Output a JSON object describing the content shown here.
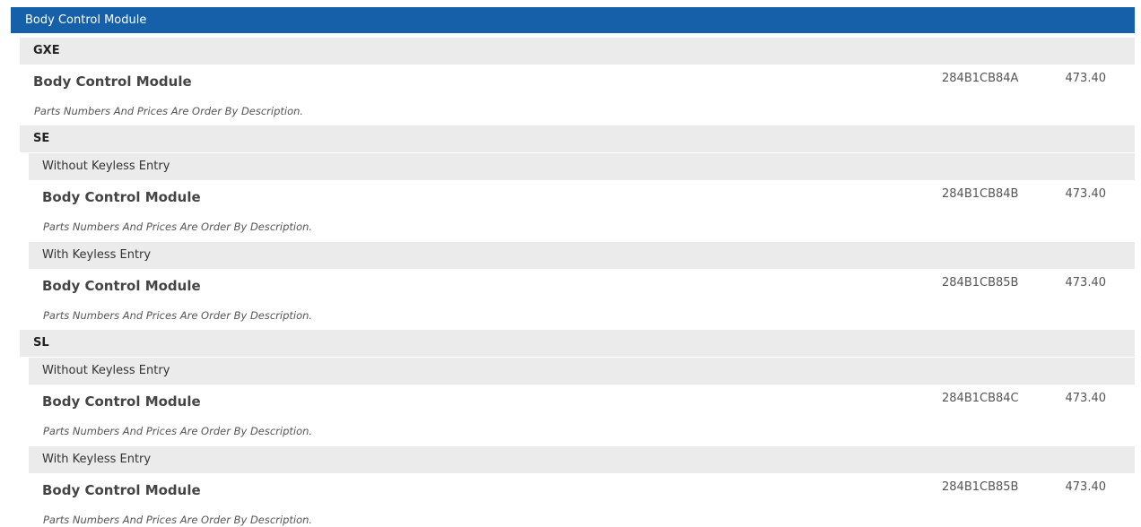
{
  "header": {
    "title": "Body Control Module"
  },
  "groups": [
    {
      "label": "GXE",
      "items": [
        {
          "name": "Body Control Module",
          "part": "284B1CB84A",
          "price": "473.40",
          "note": "Parts Numbers And Prices Are Order By Description."
        }
      ]
    },
    {
      "label": "SE",
      "subgroups": [
        {
          "label": "Without Keyless Entry",
          "items": [
            {
              "name": "Body Control Module",
              "part": "284B1CB84B",
              "price": "473.40",
              "note": "Parts Numbers And Prices Are Order By Description."
            }
          ]
        },
        {
          "label": "With Keyless Entry",
          "items": [
            {
              "name": "Body Control Module",
              "part": "284B1CB85B",
              "price": "473.40",
              "note": "Parts Numbers And Prices Are Order By Description."
            }
          ]
        }
      ]
    },
    {
      "label": "SL",
      "subgroups": [
        {
          "label": "Without Keyless Entry",
          "items": [
            {
              "name": "Body Control Module",
              "part": "284B1CB84C",
              "price": "473.40",
              "note": "Parts Numbers And Prices Are Order By Description."
            }
          ]
        },
        {
          "label": "With Keyless Entry",
          "items": [
            {
              "name": "Body Control Module",
              "part": "284B1CB85B",
              "price": "473.40",
              "note": "Parts Numbers And Prices Are Order By Description."
            }
          ]
        }
      ]
    }
  ]
}
